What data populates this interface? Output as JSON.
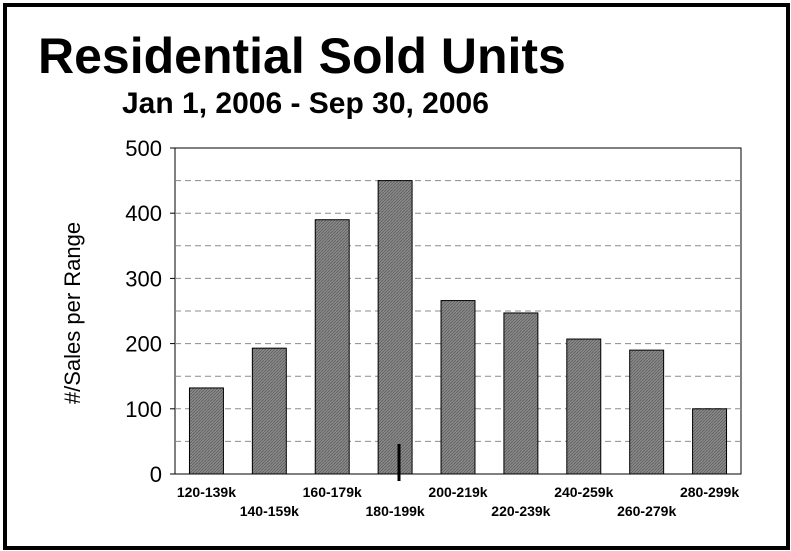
{
  "chart_data": {
    "type": "bar",
    "title": "Residential Sold Units",
    "subtitle": "Jan 1, 2006 - Sep 30, 2006",
    "xlabel": "",
    "ylabel": "#/Sales per Range",
    "ylim": [
      0,
      500
    ],
    "yticks": [
      0,
      100,
      200,
      300,
      400,
      500
    ],
    "categories": [
      "120-139k",
      "140-159k",
      "160-179k",
      "180-199k",
      "200-219k",
      "220-239k",
      "240-259k",
      "260-279k",
      "280-299k"
    ],
    "values": [
      132,
      193,
      390,
      450,
      266,
      247,
      207,
      190,
      100
    ],
    "grid": true,
    "legend": "none",
    "bar_color": "#7f7f7f",
    "bar_edge_color": "#000000"
  }
}
